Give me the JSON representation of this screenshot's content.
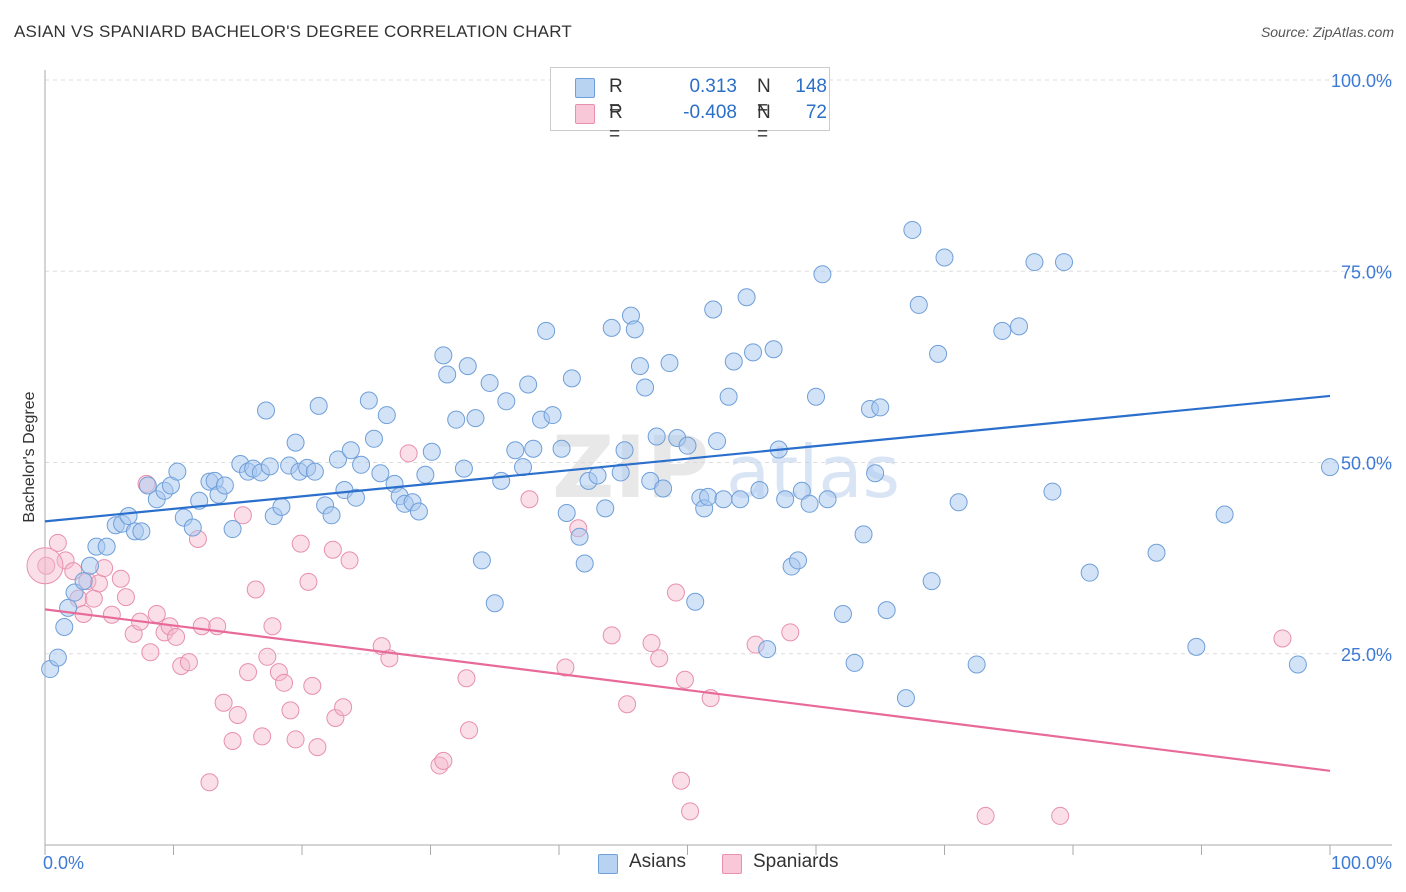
{
  "header": {
    "title": "ASIAN VS SPANIARD BACHELOR'S DEGREE CORRELATION CHART",
    "source": "Source: ZipAtlas.com"
  },
  "watermark": {
    "part1": "ZIP",
    "part2": "atlas"
  },
  "legend": {
    "rows": [
      {
        "r_label": "R =",
        "r_value": "0.313",
        "n_label": "N =",
        "n_value": "148",
        "color": "#a8c8f0"
      },
      {
        "r_label": "R =",
        "r_value": "-0.408",
        "n_label": "N =",
        "n_value": "72",
        "color": "#f5b8cc"
      }
    ]
  },
  "bottom_legend": {
    "asians": "Asians",
    "spaniards": "Spaniards"
  },
  "colors": {
    "asian_fill": "#a8c8f0",
    "asian_stroke": "#6f9fd8",
    "asian_line": "#2a6fcc",
    "spaniard_fill": "#f5b8cc",
    "spaniard_stroke": "#e890ad",
    "spaniard_line": "#e86a98",
    "tick_label": "#3d7ad6",
    "grid": "#dddddd"
  },
  "chart_data": {
    "type": "scatter",
    "title": "ASIAN VS SPANIARD BACHELOR'S DEGREE CORRELATION CHART",
    "xlabel": "",
    "ylabel": "Bachelor's Degree",
    "xlim": [
      0,
      100
    ],
    "ylim": [
      0,
      100
    ],
    "x_tick_labels": [
      "0.0%",
      "100.0%"
    ],
    "y_tick_labels": [
      "25.0%",
      "50.0%",
      "75.0%",
      "100.0%"
    ],
    "y_ticks": [
      25,
      50,
      75,
      100
    ],
    "grid": true,
    "series": [
      {
        "name": "Asians",
        "trend": {
          "x": [
            0,
            100
          ],
          "y": [
            42.3,
            58.7
          ]
        },
        "points": [
          [
            0.4,
            23.0
          ],
          [
            1.0,
            24.5
          ],
          [
            1.5,
            28.5
          ],
          [
            1.8,
            31.0
          ],
          [
            2.3,
            33.0
          ],
          [
            3.0,
            34.5
          ],
          [
            3.5,
            36.5
          ],
          [
            4.0,
            39.0
          ],
          [
            4.8,
            39.0
          ],
          [
            5.5,
            41.8
          ],
          [
            6.0,
            42.0
          ],
          [
            6.5,
            43.0
          ],
          [
            7.0,
            41.0
          ],
          [
            7.5,
            41.0
          ],
          [
            8.0,
            47.0
          ],
          [
            8.7,
            45.2
          ],
          [
            9.3,
            46.3
          ],
          [
            9.8,
            47.0
          ],
          [
            10.3,
            48.8
          ],
          [
            10.8,
            42.8
          ],
          [
            11.5,
            41.5
          ],
          [
            12.0,
            45.0
          ],
          [
            12.8,
            47.5
          ],
          [
            13.2,
            47.6
          ],
          [
            13.5,
            45.8
          ],
          [
            14.0,
            47.0
          ],
          [
            14.6,
            41.3
          ],
          [
            15.2,
            49.8
          ],
          [
            15.8,
            48.8
          ],
          [
            16.2,
            49.2
          ],
          [
            16.8,
            48.7
          ],
          [
            17.2,
            56.8
          ],
          [
            17.5,
            49.5
          ],
          [
            17.8,
            43.0
          ],
          [
            18.4,
            44.2
          ],
          [
            19.0,
            49.6
          ],
          [
            19.5,
            52.6
          ],
          [
            19.8,
            48.8
          ],
          [
            20.4,
            49.3
          ],
          [
            21.0,
            48.8
          ],
          [
            21.3,
            57.4
          ],
          [
            21.8,
            44.4
          ],
          [
            22.3,
            43.1
          ],
          [
            22.8,
            50.4
          ],
          [
            23.3,
            46.4
          ],
          [
            23.8,
            51.6
          ],
          [
            24.2,
            45.4
          ],
          [
            24.6,
            49.7
          ],
          [
            25.2,
            58.1
          ],
          [
            25.6,
            53.1
          ],
          [
            26.1,
            48.6
          ],
          [
            26.6,
            56.2
          ],
          [
            27.2,
            47.2
          ],
          [
            27.6,
            45.6
          ],
          [
            28.0,
            44.6
          ],
          [
            28.6,
            44.8
          ],
          [
            29.1,
            43.6
          ],
          [
            29.6,
            48.4
          ],
          [
            30.1,
            51.4
          ],
          [
            31.0,
            64.0
          ],
          [
            31.3,
            61.5
          ],
          [
            32.0,
            55.6
          ],
          [
            32.6,
            49.2
          ],
          [
            32.9,
            62.6
          ],
          [
            33.5,
            55.8
          ],
          [
            34.0,
            37.2
          ],
          [
            34.6,
            60.4
          ],
          [
            35.0,
            31.6
          ],
          [
            35.5,
            47.6
          ],
          [
            35.9,
            58.0
          ],
          [
            36.6,
            51.6
          ],
          [
            37.2,
            49.4
          ],
          [
            37.6,
            60.2
          ],
          [
            38.0,
            51.8
          ],
          [
            38.6,
            55.6
          ],
          [
            39.0,
            67.2
          ],
          [
            39.5,
            56.2
          ],
          [
            40.2,
            51.8
          ],
          [
            40.6,
            43.4
          ],
          [
            41.0,
            61.0
          ],
          [
            41.6,
            40.3
          ],
          [
            42.0,
            36.8
          ],
          [
            42.3,
            47.6
          ],
          [
            43.0,
            48.3
          ],
          [
            43.6,
            44.0
          ],
          [
            44.1,
            67.6
          ],
          [
            44.8,
            48.7
          ],
          [
            45.1,
            51.6
          ],
          [
            45.6,
            69.2
          ],
          [
            45.9,
            67.4
          ],
          [
            46.3,
            62.6
          ],
          [
            46.7,
            59.8
          ],
          [
            47.1,
            47.6
          ],
          [
            47.6,
            53.4
          ],
          [
            48.1,
            46.6
          ],
          [
            48.6,
            63.0
          ],
          [
            49.2,
            53.2
          ],
          [
            50.0,
            52.2
          ],
          [
            50.6,
            31.8
          ],
          [
            51.0,
            45.4
          ],
          [
            51.3,
            44.0
          ],
          [
            51.6,
            45.5
          ],
          [
            52.0,
            70.0
          ],
          [
            52.3,
            52.8
          ],
          [
            52.8,
            45.2
          ],
          [
            53.2,
            58.6
          ],
          [
            53.6,
            63.2
          ],
          [
            54.1,
            45.2
          ],
          [
            54.6,
            71.6
          ],
          [
            55.1,
            64.4
          ],
          [
            55.6,
            46.4
          ],
          [
            56.2,
            25.6
          ],
          [
            56.7,
            64.8
          ],
          [
            57.1,
            51.7
          ],
          [
            57.6,
            45.2
          ],
          [
            58.1,
            36.4
          ],
          [
            58.6,
            37.2
          ],
          [
            58.9,
            46.3
          ],
          [
            59.5,
            44.6
          ],
          [
            60.0,
            58.6
          ],
          [
            60.5,
            74.6
          ],
          [
            60.9,
            45.2
          ],
          [
            62.1,
            30.2
          ],
          [
            63.0,
            23.8
          ],
          [
            63.7,
            40.6
          ],
          [
            64.2,
            57.0
          ],
          [
            64.6,
            48.6
          ],
          [
            65.0,
            57.2
          ],
          [
            65.5,
            30.7
          ],
          [
            67.0,
            19.2
          ],
          [
            67.5,
            80.4
          ],
          [
            68.0,
            70.6
          ],
          [
            69.0,
            34.5
          ],
          [
            69.5,
            64.2
          ],
          [
            70.0,
            76.8
          ],
          [
            71.1,
            44.8
          ],
          [
            72.5,
            23.6
          ],
          [
            74.5,
            67.2
          ],
          [
            75.8,
            67.8
          ],
          [
            77.0,
            76.2
          ],
          [
            78.4,
            46.2
          ],
          [
            79.3,
            76.2
          ],
          [
            81.3,
            35.6
          ],
          [
            89.6,
            25.9
          ],
          [
            97.5,
            23.6
          ],
          [
            100.0,
            49.4
          ],
          [
            91.8,
            43.2
          ],
          [
            86.5,
            38.2
          ]
        ]
      },
      {
        "name": "Spaniards",
        "trend": {
          "x": [
            0,
            100
          ],
          "y": [
            30.8,
            9.7
          ]
        },
        "points": [
          [
            0.1,
            36.5
          ],
          [
            1.0,
            39.5
          ],
          [
            1.6,
            37.2
          ],
          [
            2.2,
            35.8
          ],
          [
            2.6,
            32.2
          ],
          [
            3.0,
            30.2
          ],
          [
            3.3,
            34.5
          ],
          [
            3.8,
            32.2
          ],
          [
            4.2,
            34.2
          ],
          [
            4.6,
            36.2
          ],
          [
            5.2,
            30.1
          ],
          [
            5.9,
            34.8
          ],
          [
            6.3,
            32.4
          ],
          [
            6.9,
            27.6
          ],
          [
            7.4,
            29.2
          ],
          [
            7.9,
            47.2
          ],
          [
            8.2,
            25.2
          ],
          [
            8.7,
            30.2
          ],
          [
            9.3,
            27.8
          ],
          [
            9.7,
            28.6
          ],
          [
            10.2,
            27.2
          ],
          [
            10.6,
            23.4
          ],
          [
            11.2,
            23.9
          ],
          [
            11.9,
            40.0
          ],
          [
            12.2,
            28.6
          ],
          [
            12.8,
            8.2
          ],
          [
            13.4,
            28.6
          ],
          [
            13.9,
            18.6
          ],
          [
            14.6,
            13.6
          ],
          [
            15.0,
            17.0
          ],
          [
            15.4,
            43.1
          ],
          [
            15.8,
            22.6
          ],
          [
            16.4,
            33.4
          ],
          [
            16.9,
            14.2
          ],
          [
            17.3,
            24.6
          ],
          [
            17.7,
            28.6
          ],
          [
            18.2,
            22.6
          ],
          [
            18.6,
            21.2
          ],
          [
            19.1,
            17.6
          ],
          [
            19.5,
            13.8
          ],
          [
            19.9,
            39.4
          ],
          [
            20.5,
            34.4
          ],
          [
            20.8,
            20.8
          ],
          [
            21.2,
            12.8
          ],
          [
            22.6,
            16.6
          ],
          [
            22.4,
            38.6
          ],
          [
            23.2,
            18.0
          ],
          [
            23.7,
            37.2
          ],
          [
            26.2,
            26.0
          ],
          [
            26.8,
            24.4
          ],
          [
            28.3,
            51.2
          ],
          [
            30.7,
            10.4
          ],
          [
            31.0,
            11.0
          ],
          [
            32.8,
            21.8
          ],
          [
            33.0,
            15.0
          ],
          [
            37.7,
            45.2
          ],
          [
            40.5,
            23.2
          ],
          [
            41.5,
            41.4
          ],
          [
            44.1,
            27.4
          ],
          [
            45.3,
            18.4
          ],
          [
            47.2,
            26.4
          ],
          [
            47.8,
            24.4
          ],
          [
            49.5,
            8.4
          ],
          [
            49.8,
            21.6
          ],
          [
            50.2,
            4.4
          ],
          [
            51.8,
            19.2
          ],
          [
            55.3,
            26.2
          ],
          [
            58.0,
            27.8
          ],
          [
            73.2,
            3.8
          ],
          [
            79.0,
            3.8
          ],
          [
            96.3,
            27.0
          ],
          [
            49.1,
            33.0
          ]
        ]
      }
    ],
    "legend_position": "top-center"
  }
}
